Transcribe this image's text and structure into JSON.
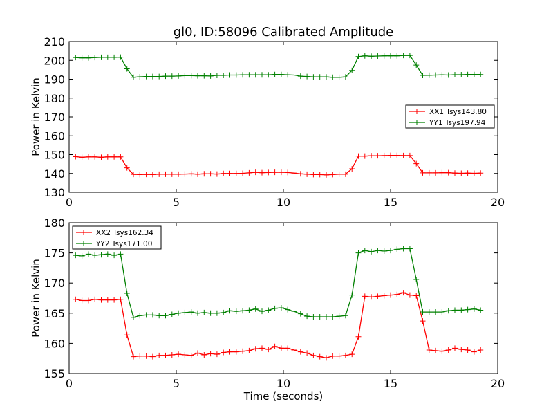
{
  "figure": {
    "title": "gl0, ID:58096 Calibrated Amplitude"
  },
  "chart_data": [
    {
      "type": "line",
      "title": "gl0, ID:58096 Calibrated Amplitude",
      "xlabel": "",
      "ylabel": "Power in Kelvin",
      "xlim": [
        0,
        20
      ],
      "ylim": [
        130,
        210
      ],
      "xticks": [
        0,
        5,
        10,
        15,
        20
      ],
      "yticks": [
        130,
        140,
        150,
        160,
        170,
        180,
        190,
        200,
        210
      ],
      "legend_position": "center-right",
      "grid": false,
      "x": [
        0.3,
        0.6,
        0.9,
        1.2,
        1.5,
        1.8,
        2.1,
        2.4,
        2.7,
        3.0,
        3.3,
        3.6,
        3.9,
        4.2,
        4.5,
        4.8,
        5.1,
        5.4,
        5.7,
        6.0,
        6.3,
        6.6,
        6.9,
        7.2,
        7.5,
        7.8,
        8.1,
        8.4,
        8.7,
        9.0,
        9.3,
        9.6,
        9.9,
        10.2,
        10.5,
        10.8,
        11.1,
        11.4,
        11.7,
        12.0,
        12.3,
        12.6,
        12.9,
        13.2,
        13.5,
        13.8,
        14.1,
        14.4,
        14.7,
        15.0,
        15.3,
        15.6,
        15.9,
        16.2,
        16.5,
        16.8,
        17.1,
        17.4,
        17.7,
        18.0,
        18.3,
        18.6,
        18.9,
        19.2
      ],
      "series": [
        {
          "name": "XX1 Tsys143.80",
          "color": "#ff0000",
          "values": [
            148.9,
            148.6,
            148.8,
            148.8,
            148.6,
            148.8,
            148.8,
            148.8,
            143.0,
            139.5,
            139.4,
            139.5,
            139.4,
            139.6,
            139.6,
            139.6,
            139.6,
            139.7,
            139.8,
            139.6,
            139.8,
            139.8,
            139.7,
            140.0,
            140.0,
            140.0,
            140.1,
            140.3,
            140.6,
            140.4,
            140.5,
            140.6,
            140.6,
            140.5,
            140.2,
            139.8,
            139.6,
            139.4,
            139.4,
            139.2,
            139.4,
            139.6,
            139.6,
            142.5,
            149.2,
            149.2,
            149.4,
            149.4,
            149.5,
            149.6,
            149.6,
            149.5,
            149.5,
            145.2,
            140.3,
            140.3,
            140.3,
            140.4,
            140.4,
            140.2,
            140.1,
            140.2,
            140.1,
            140.2
          ]
        },
        {
          "name": "YY1 Tsys197.94",
          "color": "#008000",
          "values": [
            201.5,
            201.3,
            201.3,
            201.5,
            201.6,
            201.6,
            201.6,
            201.7,
            195.5,
            191.0,
            191.3,
            191.4,
            191.4,
            191.4,
            191.6,
            191.6,
            191.7,
            191.9,
            191.9,
            191.8,
            191.8,
            191.7,
            192.0,
            192.0,
            192.2,
            192.2,
            192.3,
            192.3,
            192.3,
            192.3,
            192.3,
            192.5,
            192.5,
            192.3,
            192.2,
            191.6,
            191.4,
            191.2,
            191.2,
            191.2,
            191.0,
            191.0,
            191.2,
            194.7,
            202.0,
            202.4,
            202.2,
            202.3,
            202.4,
            202.4,
            202.4,
            202.6,
            202.6,
            197.5,
            192.0,
            192.1,
            192.2,
            192.3,
            192.2,
            192.4,
            192.4,
            192.5,
            192.5,
            192.5
          ]
        }
      ]
    },
    {
      "type": "line",
      "title": "",
      "xlabel": "Time (seconds)",
      "ylabel": "Power in Kelvin",
      "xlim": [
        0,
        20
      ],
      "ylim": [
        155,
        180
      ],
      "xticks": [
        0,
        5,
        10,
        15,
        20
      ],
      "yticks": [
        155,
        160,
        165,
        170,
        175,
        180
      ],
      "legend_position": "top-left",
      "grid": false,
      "x": [
        0.3,
        0.6,
        0.9,
        1.2,
        1.5,
        1.8,
        2.1,
        2.4,
        2.7,
        3.0,
        3.3,
        3.6,
        3.9,
        4.2,
        4.5,
        4.8,
        5.1,
        5.4,
        5.7,
        6.0,
        6.3,
        6.6,
        6.9,
        7.2,
        7.5,
        7.8,
        8.1,
        8.4,
        8.7,
        9.0,
        9.3,
        9.6,
        9.9,
        10.2,
        10.5,
        10.8,
        11.1,
        11.4,
        11.7,
        12.0,
        12.3,
        12.6,
        12.9,
        13.2,
        13.5,
        13.8,
        14.1,
        14.4,
        14.7,
        15.0,
        15.3,
        15.6,
        15.9,
        16.2,
        16.5,
        16.8,
        17.1,
        17.4,
        17.7,
        18.0,
        18.3,
        18.6,
        18.9,
        19.2
      ],
      "series": [
        {
          "name": "XX2 Tsys162.34",
          "color": "#ff0000",
          "values": [
            167.3,
            167.1,
            167.1,
            167.3,
            167.2,
            167.2,
            167.2,
            167.3,
            161.4,
            157.8,
            157.9,
            157.9,
            157.8,
            158.0,
            158.0,
            158.1,
            158.2,
            158.1,
            158.0,
            158.4,
            158.1,
            158.3,
            158.2,
            158.5,
            158.6,
            158.6,
            158.7,
            158.8,
            159.1,
            159.2,
            159.0,
            159.5,
            159.2,
            159.2,
            158.9,
            158.6,
            158.4,
            158.0,
            157.8,
            157.6,
            157.9,
            157.9,
            158.0,
            158.2,
            161.1,
            167.8,
            167.7,
            167.8,
            167.9,
            168.0,
            168.1,
            168.4,
            168.0,
            167.9,
            163.7,
            158.9,
            158.8,
            158.7,
            158.9,
            159.2,
            159.0,
            158.9,
            158.6,
            158.9
          ]
        },
        {
          "name": "YY2 Tsys171.00",
          "color": "#008000",
          "values": [
            174.6,
            174.5,
            174.8,
            174.6,
            174.7,
            174.8,
            174.6,
            174.8,
            168.3,
            164.3,
            164.6,
            164.7,
            164.7,
            164.6,
            164.6,
            164.8,
            165.0,
            165.1,
            165.2,
            165.0,
            165.1,
            165.0,
            165.0,
            165.1,
            165.4,
            165.3,
            165.4,
            165.5,
            165.7,
            165.3,
            165.5,
            165.8,
            165.9,
            165.6,
            165.3,
            164.9,
            164.5,
            164.4,
            164.4,
            164.4,
            164.4,
            164.5,
            164.6,
            168.0,
            175.0,
            175.4,
            175.2,
            175.4,
            175.3,
            175.4,
            175.6,
            175.7,
            175.7,
            170.6,
            165.2,
            165.2,
            165.2,
            165.2,
            165.4,
            165.5,
            165.5,
            165.6,
            165.7,
            165.5
          ]
        }
      ]
    }
  ]
}
